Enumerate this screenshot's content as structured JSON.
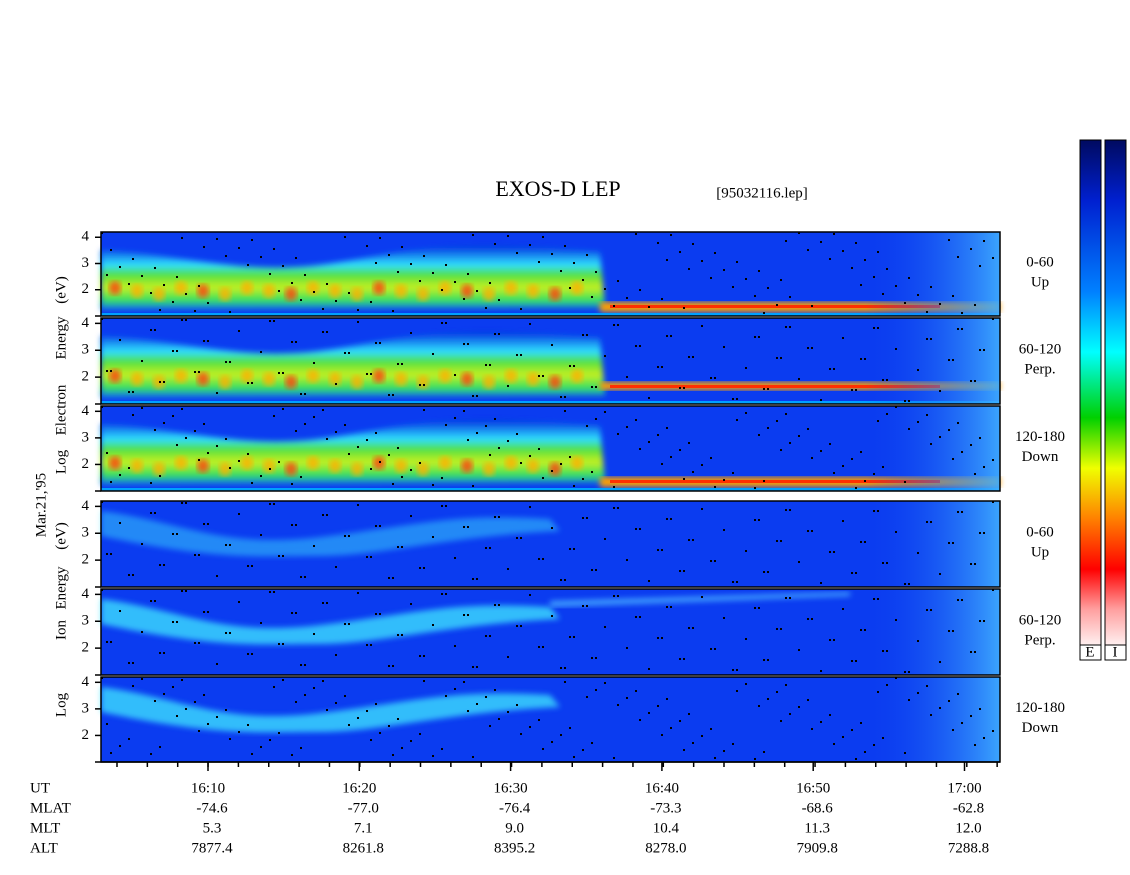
{
  "title": "EXOS-D LEP",
  "file": "[95032116.lep]",
  "date": "Mar.21,'95",
  "electron_axis_label": [
    "Log",
    "Electron",
    "Energy",
    "(eV)"
  ],
  "ion_axis_label": [
    "Log",
    "Ion",
    "Energy",
    "(eV)"
  ],
  "ylim": [
    1,
    4.2
  ],
  "yticks": [
    2,
    3,
    4
  ],
  "panels": [
    {
      "range": "0-60",
      "dir": "Up"
    },
    {
      "range": "60-120",
      "dir": "Perp."
    },
    {
      "range": "120-180",
      "dir": "Down"
    },
    {
      "range": "0-60",
      "dir": "Up"
    },
    {
      "range": "60-120",
      "dir": "Perp."
    },
    {
      "range": "120-180",
      "dir": "Down"
    }
  ],
  "time_axis": [
    {
      "name": "UT",
      "values": [
        "16:10",
        "16:20",
        "16:30",
        "16:40",
        "16:50",
        "17:00"
      ]
    },
    {
      "name": "MLAT",
      "values": [
        "-74.6",
        "-77.0",
        "-76.4",
        "-73.3",
        "-68.6",
        "-62.8"
      ]
    },
    {
      "name": "MLT",
      "values": [
        "5.3",
        "7.1",
        "9.0",
        "10.4",
        "11.3",
        "12.0"
      ]
    },
    {
      "name": "ALT",
      "values": [
        "7877.4",
        "8261.8",
        "8395.2",
        "8278.0",
        "7909.8",
        "7288.8"
      ]
    }
  ],
  "colorbar_labels": [
    "E",
    "I"
  ]
}
